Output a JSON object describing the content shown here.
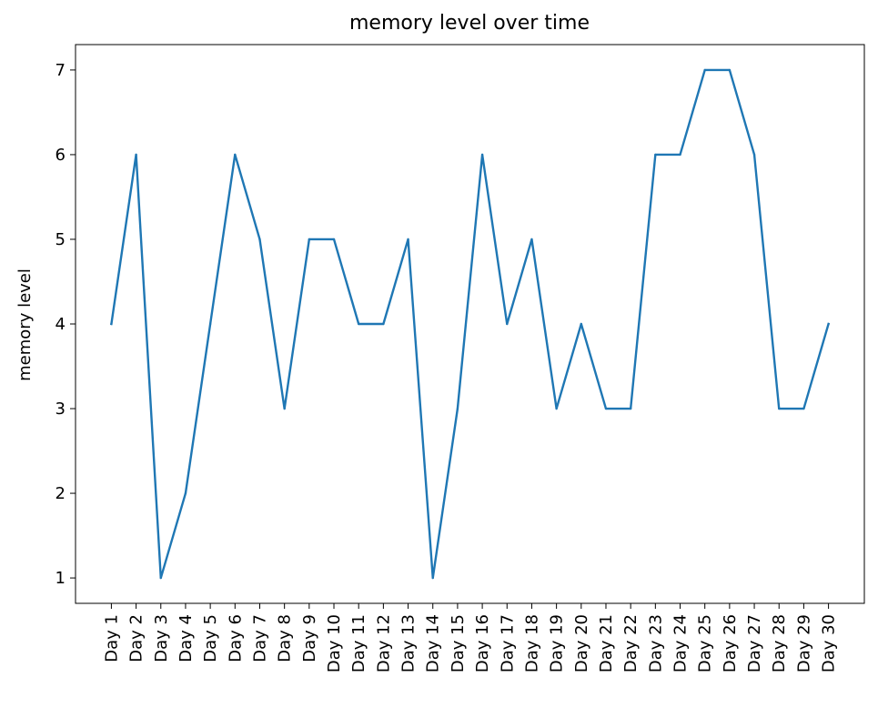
{
  "chart_data": {
    "type": "line",
    "title": "memory level over time",
    "xlabel": "",
    "ylabel": "memory level",
    "categories": [
      "Day 1",
      "Day 2",
      "Day 3",
      "Day 4",
      "Day 5",
      "Day 6",
      "Day 7",
      "Day 8",
      "Day 9",
      "Day 10",
      "Day 11",
      "Day 12",
      "Day 13",
      "Day 14",
      "Day 15",
      "Day 16",
      "Day 17",
      "Day 18",
      "Day 19",
      "Day 20",
      "Day 21",
      "Day 22",
      "Day 23",
      "Day 24",
      "Day 25",
      "Day 26",
      "Day 27",
      "Day 28",
      "Day 29",
      "Day 30"
    ],
    "series": [
      {
        "values": [
          4,
          6,
          1,
          2,
          4,
          6,
          5,
          3,
          5,
          5,
          4,
          4,
          5,
          1,
          3,
          6,
          4,
          5,
          3,
          4,
          3,
          3,
          6,
          6,
          7,
          7,
          6,
          3,
          3,
          4
        ]
      }
    ],
    "yticks": [
      1,
      2,
      3,
      4,
      5,
      6,
      7
    ],
    "ylim": [
      0.7,
      7.3
    ],
    "grid": false,
    "line_color": "#1f77b4"
  }
}
